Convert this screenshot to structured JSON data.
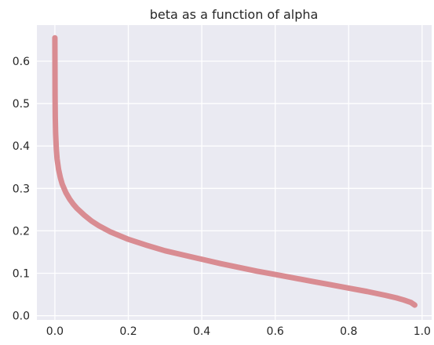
{
  "chart_data": {
    "type": "line",
    "title": "beta as a function of alpha",
    "xlabel": "",
    "ylabel": "",
    "xlim": [
      -0.049,
      1.026
    ],
    "ylim": [
      -0.01,
      0.685
    ],
    "x_ticks": [
      0.0,
      0.2,
      0.4,
      0.6,
      0.8,
      1.0
    ],
    "x_tick_labels": [
      "0.0",
      "0.2",
      "0.4",
      "0.6",
      "0.8",
      "1.0"
    ],
    "y_ticks": [
      0.0,
      0.1,
      0.2,
      0.3,
      0.4,
      0.5,
      0.6
    ],
    "y_tick_labels": [
      "0.0",
      "0.1",
      "0.2",
      "0.3",
      "0.4",
      "0.5",
      "0.6"
    ],
    "grid": true,
    "background": "#eaeaf2",
    "grid_color": "#ffffff",
    "series": [
      {
        "color": "#d98c92",
        "x": [
          0.0,
          0.0005,
          0.001,
          0.002,
          0.004,
          0.006,
          0.01,
          0.015,
          0.02,
          0.03,
          0.04,
          0.05,
          0.06,
          0.08,
          0.1,
          0.12,
          0.15,
          0.2,
          0.25,
          0.3,
          0.35,
          0.4,
          0.45,
          0.5,
          0.55,
          0.6,
          0.65,
          0.7,
          0.75,
          0.8,
          0.85,
          0.9,
          0.93,
          0.95,
          0.97,
          0.98
        ],
        "y": [
          0.655,
          0.52,
          0.47,
          0.43,
          0.392,
          0.37,
          0.345,
          0.325,
          0.31,
          0.29,
          0.275,
          0.263,
          0.253,
          0.237,
          0.223,
          0.212,
          0.198,
          0.18,
          0.166,
          0.153,
          0.143,
          0.133,
          0.123,
          0.114,
          0.105,
          0.097,
          0.089,
          0.081,
          0.073,
          0.065,
          0.057,
          0.048,
          0.042,
          0.037,
          0.031,
          0.025
        ]
      }
    ]
  }
}
